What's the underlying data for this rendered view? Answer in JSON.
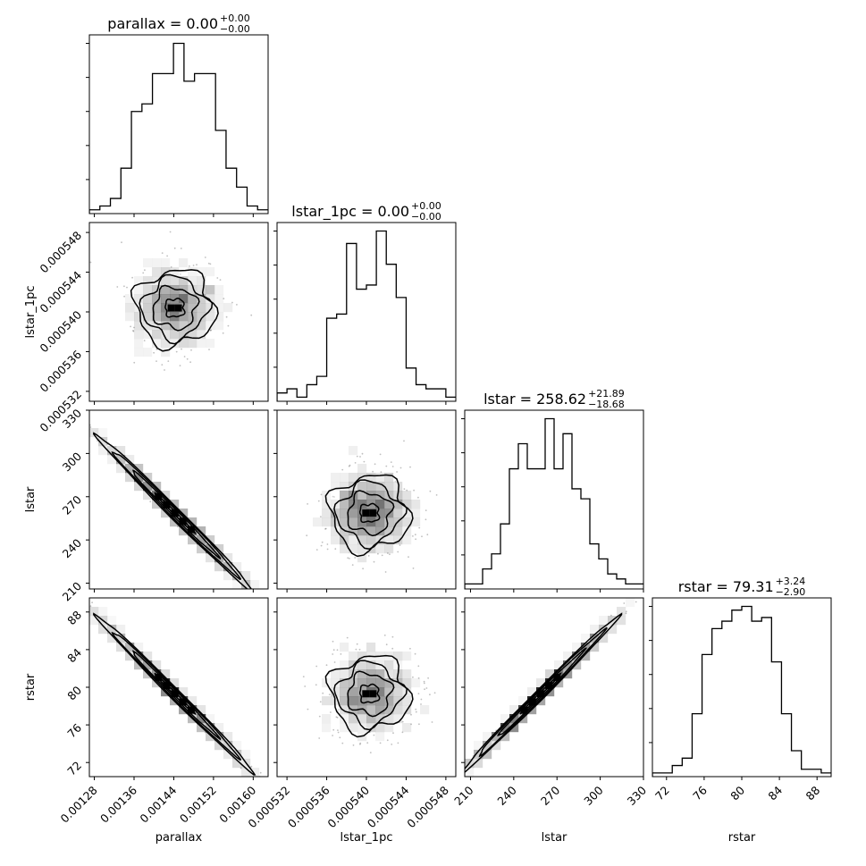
{
  "chart_data": {
    "type": "corner",
    "parameters": [
      "parallax",
      "lstar_1pc",
      "lstar",
      "rstar"
    ],
    "titles": [
      {
        "param": "parallax",
        "text": "parallax = 0.00",
        "upper": "+0.00",
        "lower": "−0.00"
      },
      {
        "param": "lstar_1pc",
        "text": "lstar_1pc = 0.00",
        "upper": "+0.00",
        "lower": "−0.00"
      },
      {
        "param": "lstar",
        "text": "lstar = 258.62",
        "upper": "+21.89",
        "lower": "−18.68"
      },
      {
        "param": "rstar",
        "text": "rstar = 79.31",
        "upper": "+3.24",
        "lower": "−2.90"
      }
    ],
    "axis_labels": [
      "parallax",
      "lstar_1pc",
      "lstar",
      "rstar"
    ],
    "ranges": [
      [
        0.00127,
        0.00163
      ],
      [
        0.000531,
        0.000549
      ],
      [
        206,
        330
      ],
      [
        70.5,
        89.5
      ]
    ],
    "ticks": [
      [
        "0.00128",
        "0.00136",
        "0.00144",
        "0.00152",
        "0.00160"
      ],
      [
        "0.000532",
        "0.000536",
        "0.000540",
        "0.000544",
        "0.000548"
      ],
      [
        "210",
        "240",
        "270",
        "300",
        "330"
      ],
      [
        "72",
        "76",
        "80",
        "84",
        "88"
      ]
    ],
    "histograms": [
      {
        "param": "parallax",
        "counts": [
          1,
          2,
          4,
          12,
          27,
          29,
          37,
          37,
          45,
          35,
          37,
          37,
          22,
          12,
          7,
          2,
          1
        ]
      },
      {
        "param": "lstar_1pc",
        "counts": [
          2,
          3,
          1,
          4,
          6,
          20,
          21,
          38,
          27,
          28,
          41,
          33,
          25,
          8,
          4,
          3,
          3,
          1
        ]
      },
      {
        "param": "lstar",
        "counts": [
          1,
          1,
          4,
          7,
          13,
          24,
          29,
          24,
          24,
          34,
          24,
          31,
          20,
          18,
          9,
          6,
          3,
          2,
          1,
          1
        ]
      },
      {
        "param": "rstar",
        "counts": [
          1,
          1,
          3,
          5,
          17,
          33,
          40,
          42,
          45,
          46,
          42,
          43,
          31,
          17,
          7,
          2,
          2,
          1
        ]
      }
    ],
    "correlations": [
      {
        "x": "parallax",
        "y": "lstar_1pc",
        "center": [
          0.001442,
          0.0005404
        ],
        "r": 0.0
      },
      {
        "x": "parallax",
        "y": "lstar",
        "center": [
          0.001442,
          258.62
        ],
        "r": -0.985
      },
      {
        "x": "lstar_1pc",
        "y": "lstar",
        "center": [
          0.0005403,
          258.62
        ],
        "r": 0.0
      },
      {
        "x": "parallax",
        "y": "rstar",
        "center": [
          0.001442,
          79.31
        ],
        "r": -0.99
      },
      {
        "x": "lstar_1pc",
        "y": "rstar",
        "center": [
          0.0005403,
          79.31
        ],
        "r": 0.0
      },
      {
        "x": "lstar",
        "y": "rstar",
        "center": [
          258.62,
          79.31
        ],
        "r": 0.995
      }
    ],
    "colors": {
      "line": "#000000",
      "density": "#000000",
      "background": "#ffffff"
    }
  }
}
